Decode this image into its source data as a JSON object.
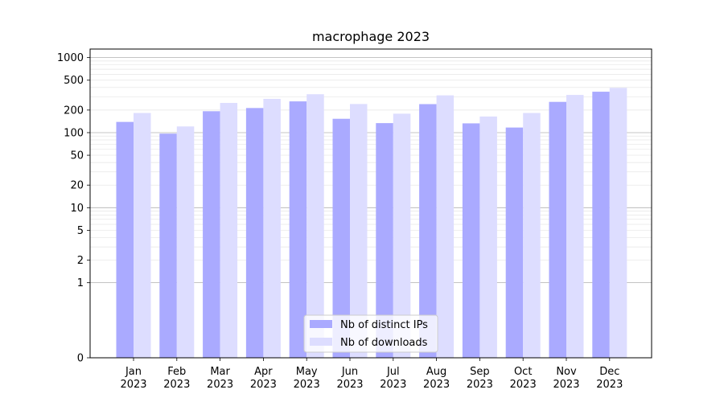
{
  "chart_data": {
    "type": "bar",
    "title": "macrophage 2023",
    "xlabel": "",
    "ylabel": "",
    "categories": [
      "Jan\n2023",
      "Feb\n2023",
      "Mar\n2023",
      "Apr\n2023",
      "May\n2023",
      "Jun\n2023",
      "Jul\n2023",
      "Aug\n2023",
      "Sep\n2023",
      "Oct\n2023",
      "Nov\n2023",
      "Dec\n2023"
    ],
    "y_scale": "symlog",
    "y_ticks": [
      0,
      1,
      2,
      5,
      10,
      20,
      50,
      100,
      200,
      500,
      1000
    ],
    "y_tick_labels": [
      "0",
      "1",
      "2",
      "5",
      "10",
      "20",
      "50",
      "100",
      "200",
      "500",
      "1000"
    ],
    "ylim": [
      0,
      1300
    ],
    "grid": true,
    "legend_position": "bottom-center",
    "series": [
      {
        "name": "Nb of distinct IPs",
        "color": "#aaaaff",
        "values": [
          139,
          97,
          193,
          213,
          261,
          153,
          134,
          240,
          133,
          117,
          257,
          351
        ]
      },
      {
        "name": "Nb of downloads",
        "color": "#ddddff",
        "values": [
          183,
          121,
          249,
          282,
          325,
          241,
          179,
          314,
          164,
          183,
          318,
          395
        ]
      }
    ]
  }
}
